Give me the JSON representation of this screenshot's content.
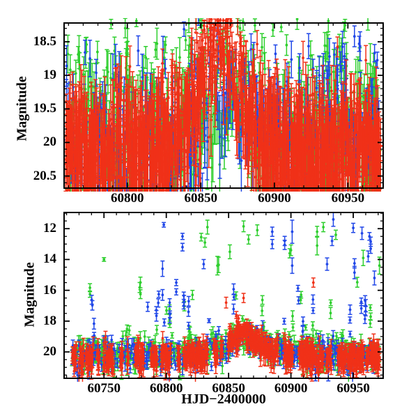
{
  "figure": {
    "xlabel": "HJD−2400000",
    "ylabel": "Magnitude",
    "background": "#ffffff",
    "description": "Two-panel multicolor photometric light curve (scatter with error bars) of a brightening event peaking near HJD 60862; top panel is a zoomed magnitude range, bottom panel is the full range."
  },
  "colors": {
    "green": "#2fcf2f",
    "blue": "#2047e8",
    "red": "#f03118",
    "axis": "#000000",
    "model": "#000000"
  },
  "chart_data": [
    {
      "id": "top",
      "type": "scatter",
      "title": "",
      "xlabel": "",
      "ylabel": "Magnitude",
      "legend": "none",
      "grid": false,
      "y_axis_inverted": true,
      "xlim": [
        60757,
        60974
      ],
      "ylim_top_mag": 18.22,
      "ylim_bottom_mag": 20.68,
      "xticks": [
        60800,
        60850,
        60900,
        60950
      ],
      "yticks": [
        18.5,
        19,
        19.5,
        20,
        20.5
      ],
      "xtick_minor_step": 10,
      "ytick_minor_step": 0.1,
      "bright_clamp_mag": 18.1,
      "event": {
        "t0": 60862,
        "halfwidth_days": 16
      },
      "model_curve": {
        "style": "dashed",
        "color_ref": "model",
        "baseline_mag": 20.5,
        "peak_depth_mag": 1.4,
        "t0": 60863,
        "lorentz_width_days": 30
      },
      "gap": {
        "t_start": 60850,
        "t_end": 60898,
        "center": 60872,
        "limit_base_mag": 19.75,
        "limit_curvature": 0.0035,
        "keep_prob": {
          "red": 0.06,
          "green": 0.25,
          "blue": 0.3
        }
      },
      "err_model": {
        "base": 0.12,
        "slope_per_mag": 0.2,
        "ref_mag": 18.3
      },
      "series": [
        {
          "name": "green",
          "t_start": 60758,
          "t_end": 60972,
          "step_days": 0.6,
          "max_pts": 2,
          "base_mag": 19.78,
          "event_depth_mag": 0.5,
          "sigma_mag": 0.72
        },
        {
          "name": "blue",
          "t_start": 60758,
          "t_end": 60972,
          "step_days": 1.1,
          "max_pts": 2,
          "base_mag": 19.98,
          "event_depth_mag": 0.65,
          "sigma_mag": 0.62,
          "late_shift": {
            "t": 60925,
            "delta_mag": -0.35
          }
        },
        {
          "name": "red",
          "t_start": 60758,
          "t_end": 60972,
          "step_days": 0.38,
          "max_pts": 3,
          "base_mag": 20.18,
          "event_depth_mag": 1.6,
          "sigma_mag": 0.5
        }
      ],
      "outliers": {
        "green": [],
        "blue": [],
        "red": []
      }
    },
    {
      "id": "bottom",
      "type": "scatter",
      "title": "",
      "xlabel": "HJD−2400000",
      "ylabel": "Magnitude",
      "legend": "none",
      "grid": false,
      "y_axis_inverted": true,
      "xlim": [
        60718,
        60974
      ],
      "ylim_top_mag": 10.95,
      "ylim_bottom_mag": 21.71,
      "xticks": [
        60750,
        60800,
        60850,
        60900,
        60950
      ],
      "yticks": [
        12,
        14,
        16,
        18,
        20
      ],
      "xtick_minor_step": 10,
      "ytick_minor_step": 0.5,
      "bright_clamp_mag": 17.35,
      "event": {
        "t0": 60862,
        "halfwidth_days": 15
      },
      "err_model": {
        "base": 0.12,
        "slope_per_mag": 0.09,
        "ref_mag": 17.0
      },
      "series": [
        {
          "name": "green",
          "t_start": 60724,
          "t_end": 60971,
          "step_days": 0.8,
          "max_pts": 2,
          "base_mag": 20.1,
          "event_depth_mag": 1.25,
          "sigma_mag": 0.52,
          "spike_prob": 0.05,
          "spike_mag_range": [
            15.4,
            18.3
          ]
        },
        {
          "name": "blue",
          "t_start": 60724,
          "t_end": 60971,
          "step_days": 1.1,
          "max_pts": 2,
          "base_mag": 20.28,
          "event_depth_mag": 1.45,
          "sigma_mag": 0.48,
          "spike_prob": 0.06,
          "spike_mag_range": [
            15.5,
            18.2
          ]
        },
        {
          "name": "red",
          "t_start": 60724,
          "t_end": 60971,
          "step_days": 0.42,
          "max_pts": 3,
          "base_mag": 20.45,
          "event_depth_mag": 1.7,
          "sigma_mag": 0.4,
          "gap_jump_prob": 0.06
        }
      ],
      "outliers": {
        "green": [
          [
            60750,
            14.0,
            0.12
          ],
          [
            60821,
            16.3,
            0.3
          ],
          [
            60828,
            12.55,
            0.25
          ],
          [
            60831,
            12.9,
            0.3
          ],
          [
            60833,
            11.9,
            0.45
          ],
          [
            60841,
            14.4,
            0.6
          ],
          [
            60842,
            14.35,
            0.5
          ],
          [
            60851,
            13.5,
            0.45
          ],
          [
            60862,
            11.85,
            0.35
          ],
          [
            60866,
            12.7,
            0.3
          ],
          [
            60873,
            12.1,
            0.35
          ],
          [
            60899,
            13.6,
            0.3
          ],
          [
            60900,
            13.4,
            0.35
          ],
          [
            60921,
            12.2,
            0.35
          ],
          [
            60921,
            13.1,
            0.6
          ],
          [
            60926,
            11.9,
            0.3
          ],
          [
            60936,
            12.4,
            0.3
          ],
          [
            60958,
            13.9,
            0.5
          ],
          [
            60971,
            14.4,
            0.55
          ]
        ],
        "blue": [
          [
            60797,
            14.6,
            0.5
          ],
          [
            60797,
            16.3,
            0.35
          ],
          [
            60798,
            11.75,
            0.15
          ],
          [
            60808,
            15.5,
            0.2
          ],
          [
            60808,
            16.1,
            0.2
          ],
          [
            60813,
            12.5,
            0.2
          ],
          [
            60813,
            13.2,
            0.25
          ],
          [
            60830,
            14.3,
            0.3
          ],
          [
            60885,
            12.2,
            0.3
          ],
          [
            60885,
            13.0,
            0.3
          ],
          [
            60895,
            12.8,
            0.3
          ],
          [
            60895,
            13.05,
            0.3
          ],
          [
            60901,
            12.2,
            0.75
          ],
          [
            60901,
            14.4,
            0.5
          ],
          [
            60929,
            14.3,
            0.4
          ],
          [
            60933,
            12.8,
            0.3
          ],
          [
            60934,
            11.4,
            0.45
          ],
          [
            60950,
            11.95,
            0.3
          ],
          [
            60951,
            14.25,
            0.3
          ],
          [
            60951,
            14.85,
            0.4
          ],
          [
            60957,
            12.3,
            0.4
          ],
          [
            60960,
            17.0,
            0.4
          ],
          [
            60962,
            13.8,
            0.35
          ],
          [
            60963,
            12.5,
            0.25
          ],
          [
            60964,
            12.85,
            0.3
          ],
          [
            60964,
            13.3,
            0.3
          ],
          [
            60967,
            15.2,
            0.45
          ]
        ],
        "red": [
          [
            60848,
            16.8,
            0.35
          ],
          [
            60862,
            16.5,
            0.3
          ],
          [
            60918,
            15.5,
            0.3
          ]
        ]
      }
    }
  ]
}
